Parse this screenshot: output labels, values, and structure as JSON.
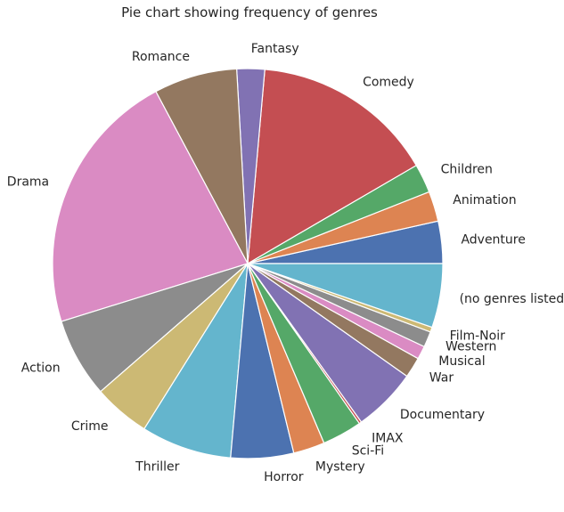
{
  "chart_data": {
    "type": "pie",
    "title": "Pie chart showing frequency of genres",
    "start_angle_deg": 0,
    "direction": "counterclockwise",
    "slices": [
      {
        "label": "Adventure",
        "value": 3.5,
        "color": "#4c72b0"
      },
      {
        "label": "Animation",
        "value": 2.5,
        "color": "#dd8452"
      },
      {
        "label": "Children",
        "value": 2.4,
        "color": "#55a868"
      },
      {
        "label": "Comedy",
        "value": 15.2,
        "color": "#c44e52"
      },
      {
        "label": "Fantasy",
        "value": 2.3,
        "color": "#8172b3"
      },
      {
        "label": "Romance",
        "value": 6.9,
        "color": "#937860"
      },
      {
        "label": "Drama",
        "value": 22.0,
        "color": "#da8bc3"
      },
      {
        "label": "Action",
        "value": 6.6,
        "color": "#8c8c8c"
      },
      {
        "label": "Crime",
        "value": 4.7,
        "color": "#ccb974"
      },
      {
        "label": "Thriller",
        "value": 7.5,
        "color": "#64b5cd"
      },
      {
        "label": "Horror",
        "value": 5.2,
        "color": "#4c72b0"
      },
      {
        "label": "Mystery",
        "value": 2.6,
        "color": "#dd8452"
      },
      {
        "label": "Sci-Fi",
        "value": 3.3,
        "color": "#55a868"
      },
      {
        "label": "IMAX",
        "value": 0.2,
        "color": "#c44e52"
      },
      {
        "label": "Documentary",
        "value": 5.3,
        "color": "#8172b3"
      },
      {
        "label": "War",
        "value": 1.7,
        "color": "#937860"
      },
      {
        "label": "Musical",
        "value": 1.1,
        "color": "#da8bc3"
      },
      {
        "label": "Western",
        "value": 1.3,
        "color": "#8c8c8c"
      },
      {
        "label": "Film-Noir",
        "value": 0.4,
        "color": "#ccb974"
      },
      {
        "label": "(no genres listed)",
        "value": 5.3,
        "color": "#64b5cd"
      }
    ]
  }
}
